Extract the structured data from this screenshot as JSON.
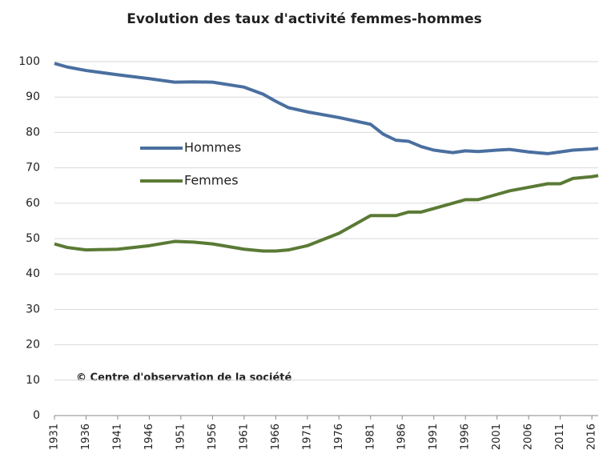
{
  "chart_data": {
    "type": "line",
    "title": "Evolution des taux d'activité femmes-hommes",
    "annotation": "© Centre d'observation de la société",
    "x": [
      1931,
      1933,
      1936,
      1941,
      1946,
      1950,
      1953,
      1956,
      1961,
      1964,
      1966,
      1968,
      1971,
      1976,
      1981,
      1983,
      1985,
      1987,
      1989,
      1991,
      1994,
      1996,
      1998,
      2001,
      2003,
      2006,
      2009,
      2011,
      2013,
      2016,
      2017
    ],
    "series": [
      {
        "name": "Hommes",
        "color": "#4a6fa0",
        "values": [
          99.5,
          98.5,
          97.5,
          96.3,
          95.2,
          94.2,
          94.3,
          94.2,
          92.8,
          90.8,
          88.8,
          87,
          85.8,
          84.2,
          82.3,
          79.5,
          77.8,
          77.5,
          76,
          75,
          74.3,
          74.8,
          74.6,
          75,
          75.2,
          74.5,
          74,
          74.5,
          75,
          75.3,
          75.5
        ]
      },
      {
        "name": "Femmes",
        "color": "#5a7a35",
        "values": [
          48.5,
          47.5,
          46.8,
          47,
          48,
          49.2,
          49,
          48.5,
          47,
          46.5,
          46.5,
          46.8,
          48,
          51.5,
          56.5,
          56.5,
          56.5,
          57.5,
          57.5,
          58.5,
          60,
          61,
          61,
          62.5,
          63.5,
          64.5,
          65.5,
          65.5,
          67,
          67.5,
          67.8
        ]
      }
    ],
    "xlim": [
      1931,
      2017
    ],
    "xticks": [
      1931,
      1936,
      1941,
      1946,
      1951,
      1956,
      1961,
      1966,
      1971,
      1976,
      1981,
      1986,
      1991,
      1996,
      2001,
      2006,
      2011,
      2016
    ],
    "ylim": [
      0,
      100
    ],
    "yticks": [
      0,
      10,
      20,
      30,
      40,
      50,
      60,
      70,
      80,
      90,
      100
    ],
    "grid": true
  }
}
